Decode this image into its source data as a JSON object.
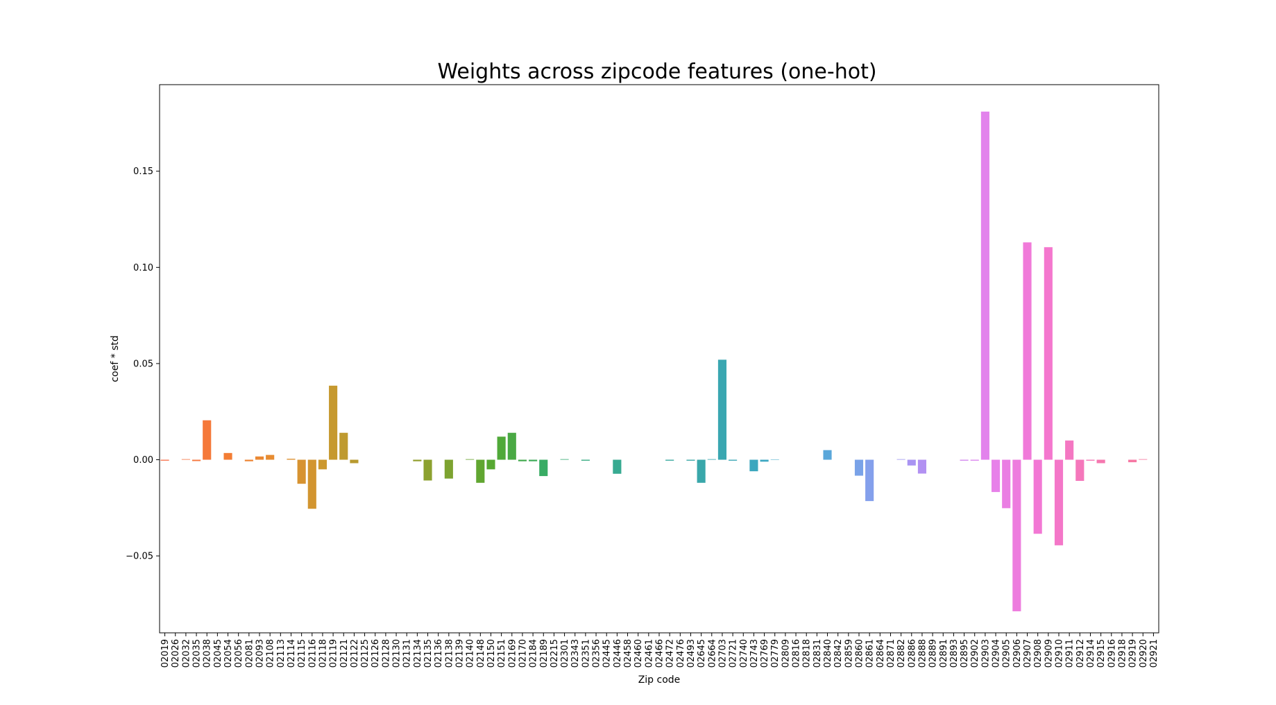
{
  "chart_data": {
    "type": "bar",
    "title": "Weights across zipcode features (one-hot)",
    "xlabel": "Zip code",
    "ylabel": "coef * std",
    "ylim": [
      -0.09,
      0.195
    ],
    "yticks": [
      -0.05,
      0.0,
      0.05,
      0.1,
      0.15
    ],
    "ytick_labels": [
      "−0.05",
      "0.00",
      "0.05",
      "0.10",
      "0.15"
    ],
    "grid": false,
    "legend": "none",
    "categories": [
      "02019",
      "02026",
      "02032",
      "02035",
      "02038",
      "02045",
      "02054",
      "02056",
      "02081",
      "02093",
      "02108",
      "02113",
      "02114",
      "02115",
      "02116",
      "02118",
      "02119",
      "02121",
      "02122",
      "02125",
      "02126",
      "02128",
      "02130",
      "02131",
      "02134",
      "02135",
      "02136",
      "02138",
      "02139",
      "02140",
      "02148",
      "02150",
      "02151",
      "02169",
      "02170",
      "02184",
      "02189",
      "02215",
      "02301",
      "02343",
      "02351",
      "02356",
      "02445",
      "02446",
      "02458",
      "02460",
      "02461",
      "02466",
      "02472",
      "02476",
      "02493",
      "02645",
      "02664",
      "02703",
      "02721",
      "02740",
      "02743",
      "02769",
      "02779",
      "02809",
      "02816",
      "02818",
      "02831",
      "02840",
      "02842",
      "02859",
      "02860",
      "02861",
      "02864",
      "02871",
      "02882",
      "02886",
      "02888",
      "02889",
      "02891",
      "02893",
      "02895",
      "02902",
      "02903",
      "02904",
      "02905",
      "02906",
      "02907",
      "02908",
      "02909",
      "02910",
      "02911",
      "02912",
      "02914",
      "02915",
      "02916",
      "02918",
      "02919",
      "02920",
      "02921"
    ],
    "values": [
      -0.0005,
      0,
      0.0003,
      -0.0007,
      0.0205,
      0,
      0.0035,
      0,
      -0.0008,
      0.0017,
      0.0025,
      0,
      0.0005,
      -0.0125,
      -0.0255,
      -0.005,
      0.0385,
      0.014,
      -0.0018,
      0,
      0,
      0,
      0,
      0,
      -0.0008,
      -0.0108,
      0,
      -0.0098,
      0,
      0.0003,
      -0.012,
      -0.005,
      0.012,
      0.014,
      -0.0008,
      -0.0008,
      -0.0085,
      0,
      0.0003,
      0,
      -0.0005,
      0,
      0,
      -0.0073,
      0,
      0,
      0,
      0,
      -0.0005,
      0,
      -0.0005,
      -0.012,
      0.0003,
      0.052,
      -0.0005,
      0,
      -0.006,
      -0.001,
      0.0002,
      0,
      0,
      0,
      0,
      0.005,
      0,
      0,
      -0.0083,
      -0.0215,
      0,
      0,
      0.0003,
      -0.003,
      -0.0072,
      0,
      0,
      0,
      -0.0005,
      -0.0005,
      0.181,
      -0.0168,
      -0.0252,
      -0.0788,
      0.113,
      -0.0385,
      0.1105,
      -0.0445,
      0.01,
      -0.011,
      -0.0005,
      -0.0018,
      0,
      0,
      -0.0013,
      0.0003,
      0
    ],
    "colors": [
      "#f7754f",
      "#f57a34",
      "#e68e32",
      "#c8992f",
      "#a49b2f",
      "#85a22f",
      "#54a832",
      "#35ac6a",
      "#37aa8e",
      "#38a89c",
      "#39a7ae",
      "#3da7c4",
      "#56a8d9",
      "#8d9ef0",
      "#bc8ef3",
      "#e582ec",
      "#f477d1",
      "#f577b0",
      "#f7779b"
    ]
  }
}
